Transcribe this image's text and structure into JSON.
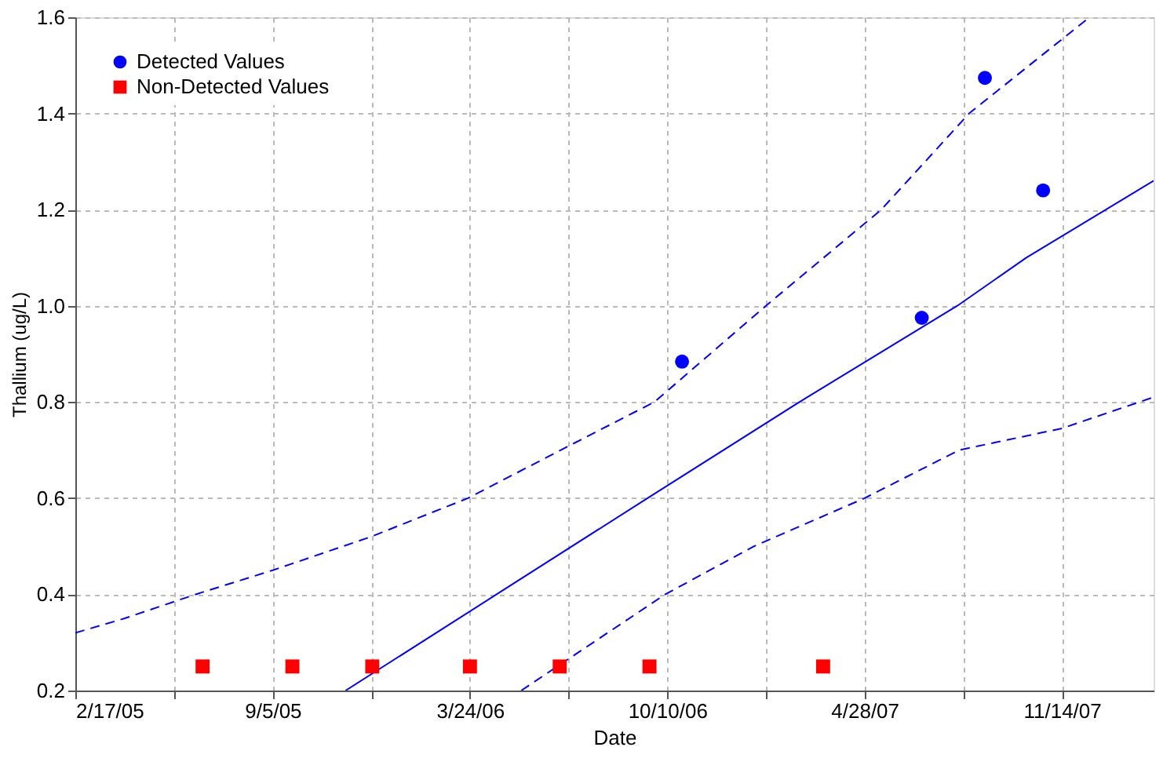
{
  "chart_data": {
    "type": "scatter",
    "xlabel": "Date",
    "ylabel": "Thallium  (ug/L)",
    "xlim": [
      "2005-02-17",
      "2008-02-15"
    ],
    "ylim": [
      0.2,
      1.6
    ],
    "xticks": [
      {
        "value": "2005-02-17",
        "label": "2/17/05"
      },
      {
        "value": "2005-05-28",
        "label": null
      },
      {
        "value": "2005-09-05",
        "label": "9/5/05"
      },
      {
        "value": "2005-12-14",
        "label": null
      },
      {
        "value": "2006-03-24",
        "label": "3/24/06"
      },
      {
        "value": "2006-07-02",
        "label": null
      },
      {
        "value": "2006-10-10",
        "label": "10/10/06"
      },
      {
        "value": "2007-01-18",
        "label": null
      },
      {
        "value": "2007-04-28",
        "label": "4/28/07"
      },
      {
        "value": "2007-08-06",
        "label": null
      },
      {
        "value": "2007-11-14",
        "label": "11/14/07"
      }
    ],
    "yticks": [
      0.2,
      0.4,
      0.6,
      0.8,
      {
        "value": 1,
        "label": "1.0"
      },
      1.2,
      1.4,
      1.6
    ],
    "grid": true,
    "legend": "top left",
    "series": [
      {
        "name": "Detected Values",
        "marker": "circle",
        "color": "#0000ff",
        "x": [
          "2006-10-25",
          "2007-06-25",
          "2007-08-28",
          "2007-10-26"
        ],
        "values": [
          0.884,
          0.975,
          1.474,
          1.24
        ]
      },
      {
        "name": "Non-Detected Values",
        "marker": "square",
        "color": "#ff0000",
        "x": [
          "2005-06-26",
          "2005-09-25",
          "2005-12-15",
          "2006-03-24",
          "2006-06-23",
          "2006-09-22",
          "2007-03-17"
        ],
        "values": [
          0.25,
          0.25,
          0.25,
          0.25,
          0.25,
          0.25,
          0.25
        ]
      },
      {
        "type": "line",
        "line_style": "solid",
        "color": "#0000ff",
        "x": [
          "2005-11-18",
          "2006-04-20",
          "2006-09-20",
          "2007-02-21",
          "2007-07-31",
          "2007-10-09",
          "2008-02-15"
        ],
        "values": [
          0.2,
          0.4,
          0.6,
          0.8,
          1.0,
          1.1,
          1.26
        ]
      },
      {
        "type": "line",
        "line_style": "dashed",
        "color": "#0000ff",
        "x": [
          "2005-02-17",
          "2005-04-08",
          "2005-06-19",
          "2005-09-05",
          "2005-12-14",
          "2006-03-22",
          "2006-06-24",
          "2006-09-27",
          "2007-01-18",
          "2007-05-15",
          "2007-08-12",
          "2007-12-12"
        ],
        "values": [
          0.32,
          0.35,
          0.4,
          0.45,
          0.52,
          0.6,
          0.7,
          0.8,
          1.0,
          1.2,
          1.4,
          1.6
        ]
      },
      {
        "type": "line",
        "line_style": "dashed",
        "color": "#0000ff",
        "x": [
          "2006-05-15",
          "2006-10-08",
          "2007-01-06",
          "2007-04-28",
          "2007-08-02",
          "2007-11-14",
          "2008-02-15"
        ],
        "values": [
          0.2,
          0.4,
          0.5,
          0.6,
          0.7,
          0.745,
          0.81
        ]
      }
    ]
  }
}
